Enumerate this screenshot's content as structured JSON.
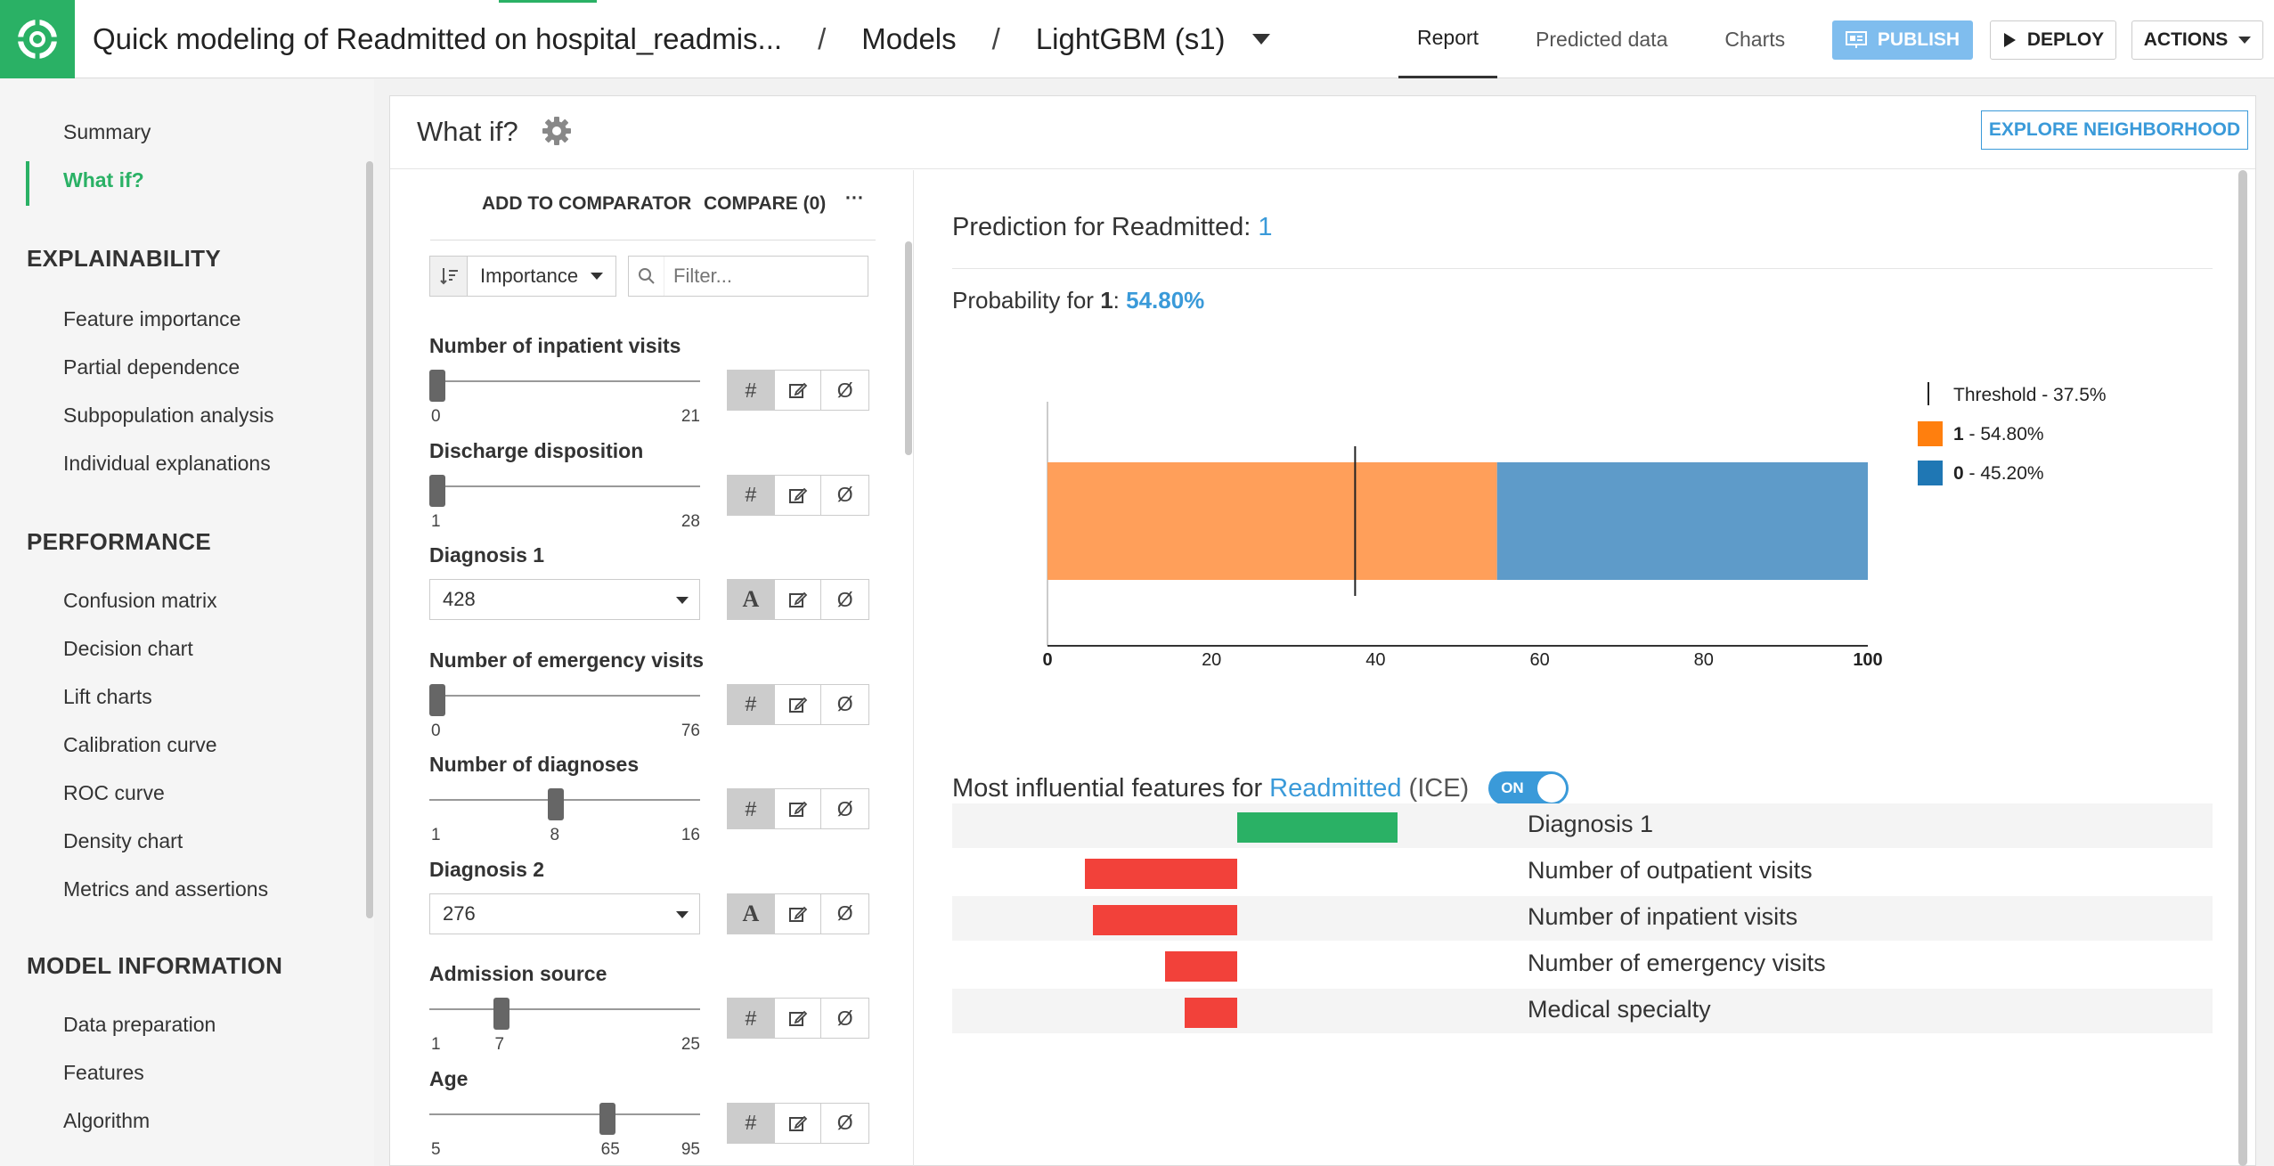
{
  "header": {
    "title": "Quick modeling of Readmitted on hospital_readmis...",
    "sep1": "/",
    "crumb_models": "Models",
    "sep2": "/",
    "crumb_model": "LightGBM (s1)",
    "tabs": [
      {
        "label": "Report",
        "active": true
      },
      {
        "label": "Predicted data",
        "active": false
      },
      {
        "label": "Charts",
        "active": false
      }
    ],
    "publish_label": "PUBLISH",
    "deploy_label": "DEPLOY",
    "actions_label": "ACTIONS"
  },
  "sidebar": {
    "top_items": [
      "Summary",
      "What if?"
    ],
    "sections": [
      {
        "heading": "EXPLAINABILITY",
        "items": [
          "Feature importance",
          "Partial dependence",
          "Subpopulation analysis",
          "Individual explanations"
        ]
      },
      {
        "heading": "PERFORMANCE",
        "items": [
          "Confusion matrix",
          "Decision chart",
          "Lift charts",
          "Calibration curve",
          "ROC curve",
          "Density chart",
          "Metrics and assertions"
        ]
      },
      {
        "heading": "MODEL INFORMATION",
        "items": [
          "Data preparation",
          "Features",
          "Algorithm"
        ]
      }
    ]
  },
  "panel": {
    "title": "What if?",
    "explore_label": "EXPLORE NEIGHBORHOOD"
  },
  "left": {
    "add_to_comparator": "ADD TO COMPARATOR",
    "compare": "COMPARE (0)",
    "more": "···",
    "sort_label": "Importance",
    "filter_placeholder": "Filter...",
    "features": [
      {
        "label": "Number of inpatient visits",
        "type": "slider",
        "min": "0",
        "max": "21",
        "value": 0,
        "value_label": ""
      },
      {
        "label": "Discharge disposition",
        "type": "slider",
        "min": "1",
        "max": "28",
        "value": 1,
        "value_label": ""
      },
      {
        "label": "Diagnosis 1",
        "type": "select",
        "value_text": "428"
      },
      {
        "label": "Number of emergency visits",
        "type": "slider",
        "min": "0",
        "max": "76",
        "value": 0,
        "value_label": ""
      },
      {
        "label": "Number of diagnoses",
        "type": "slider",
        "min": "1",
        "max": "16",
        "value": 8,
        "value_label": "8"
      },
      {
        "label": "Diagnosis 2",
        "type": "select",
        "value_text": "276"
      },
      {
        "label": "Admission source",
        "type": "slider",
        "min": "1",
        "max": "25",
        "value": 7,
        "value_label": "7"
      },
      {
        "label": "Age",
        "type": "slider",
        "min": "5",
        "max": "95",
        "value": 65,
        "value_label": "65"
      }
    ],
    "ctl_numeric": "#",
    "ctl_text": "A",
    "ctl_null": "Ø"
  },
  "right": {
    "pred_prefix": "Prediction for Readmitted: ",
    "pred_value": "1",
    "prob_prefix": "Probability for ",
    "prob_class": "1",
    "prob_sep": ": ",
    "prob_value": "54.80%",
    "influ_prefix": "Most influential features for ",
    "influ_target": "Readmitted",
    "influ_suffix": " (ICE)",
    "toggle_label": "ON"
  },
  "chart_data": [
    {
      "type": "bar",
      "orientation": "horizontal-stacked",
      "x": [
        0,
        100
      ],
      "xlim": [
        0,
        100
      ],
      "xticks": [
        "0",
        "20",
        "40",
        "60",
        "80",
        "100"
      ],
      "threshold": 37.5,
      "series": [
        {
          "name": "1 - 54.80%",
          "value": 54.8,
          "color": "#ff9f5a"
        },
        {
          "name": "0 - 45.20%",
          "value": 45.2,
          "color": "#5e9bc9"
        }
      ],
      "legend": [
        {
          "label": "Threshold - 37.5%",
          "kind": "line"
        },
        {
          "label_bold": "1",
          "label_rest": " - 54.80%",
          "color": "#ff7f0e"
        },
        {
          "label_bold": "0",
          "label_rest": " - 45.20%",
          "color": "#1f77b4"
        }
      ],
      "legend_position": "right"
    },
    {
      "type": "bar",
      "orientation": "horizontal-diverging",
      "categories": [
        "Diagnosis 1",
        "Number of outpatient visits",
        "Number of inpatient visits",
        "Number of emergency visits",
        "Medical specialty"
      ],
      "values": [
        1.0,
        -0.95,
        -0.9,
        -0.45,
        -0.33
      ],
      "colors": {
        "positive": "#2ab165",
        "negative": "#f2413a"
      }
    }
  ]
}
